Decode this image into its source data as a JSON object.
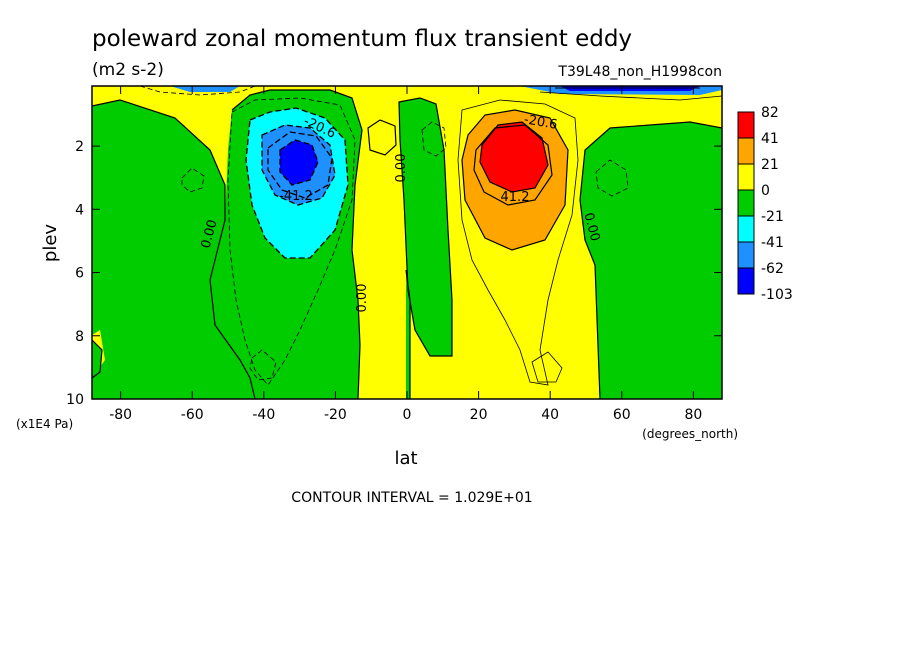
{
  "title": "poleward zonal momentum flux transient eddy",
  "units": "(m2 s-2)",
  "experiment": "T39L48_non_H1998con",
  "footer": "CONTOUR INTERVAL = 1.029E+01",
  "chart_data": {
    "type": "contourf",
    "xlabel": "lat",
    "xunits": "(degrees_north)",
    "ylabel": "plev",
    "yunits": "(x1E4 Pa)",
    "xlim": [
      -88,
      88
    ],
    "ylim": [
      10,
      0.1
    ],
    "xticks": [
      -80,
      -60,
      -40,
      -20,
      0,
      20,
      40,
      60,
      80
    ],
    "xtick_labels": [
      "-80",
      "-60",
      "-40",
      "-20",
      "0",
      "20",
      "40",
      "60",
      "80"
    ],
    "yticks": [
      2,
      4,
      6,
      8,
      10
    ],
    "ytick_labels": [
      "2",
      "4",
      "6",
      "8",
      "10"
    ],
    "contour_interval": 10.29,
    "contour_labels": [
      {
        "text": "-20.6",
        "x": -27,
        "y": 1.5
      },
      {
        "text": "-41.2",
        "x": -31,
        "y": 3.6
      },
      {
        "text": "0.00",
        "x": -54,
        "y": 4.5
      },
      {
        "text": "0.00",
        "x": -11,
        "y": 7.2
      },
      {
        "text": "0.00",
        "x": -0.5,
        "y": 2.7
      },
      {
        "text": "-20.6",
        "x": 38,
        "y": 1.4
      },
      {
        "text": "41.2",
        "x": 31,
        "y": 3.6
      },
      {
        "text": "0.00",
        "x": 51,
        "y": 4.4
      }
    ],
    "colorbar": {
      "levels": [
        "82",
        "41",
        "21",
        "0",
        "-21",
        "-41",
        "-62",
        "-103"
      ],
      "colors": [
        "#ff0000",
        "#ffa500",
        "#ffff00",
        "#00cc00",
        "#00ffff",
        "#1e90ff",
        "#0000ff"
      ]
    },
    "features": [
      {
        "name": "northern jet flux maximum",
        "lat": 30,
        "plev": 2.5,
        "value": 82
      },
      {
        "name": "southern jet flux minimum",
        "lat": -31,
        "plev": 2.5,
        "value": -62
      }
    ]
  }
}
